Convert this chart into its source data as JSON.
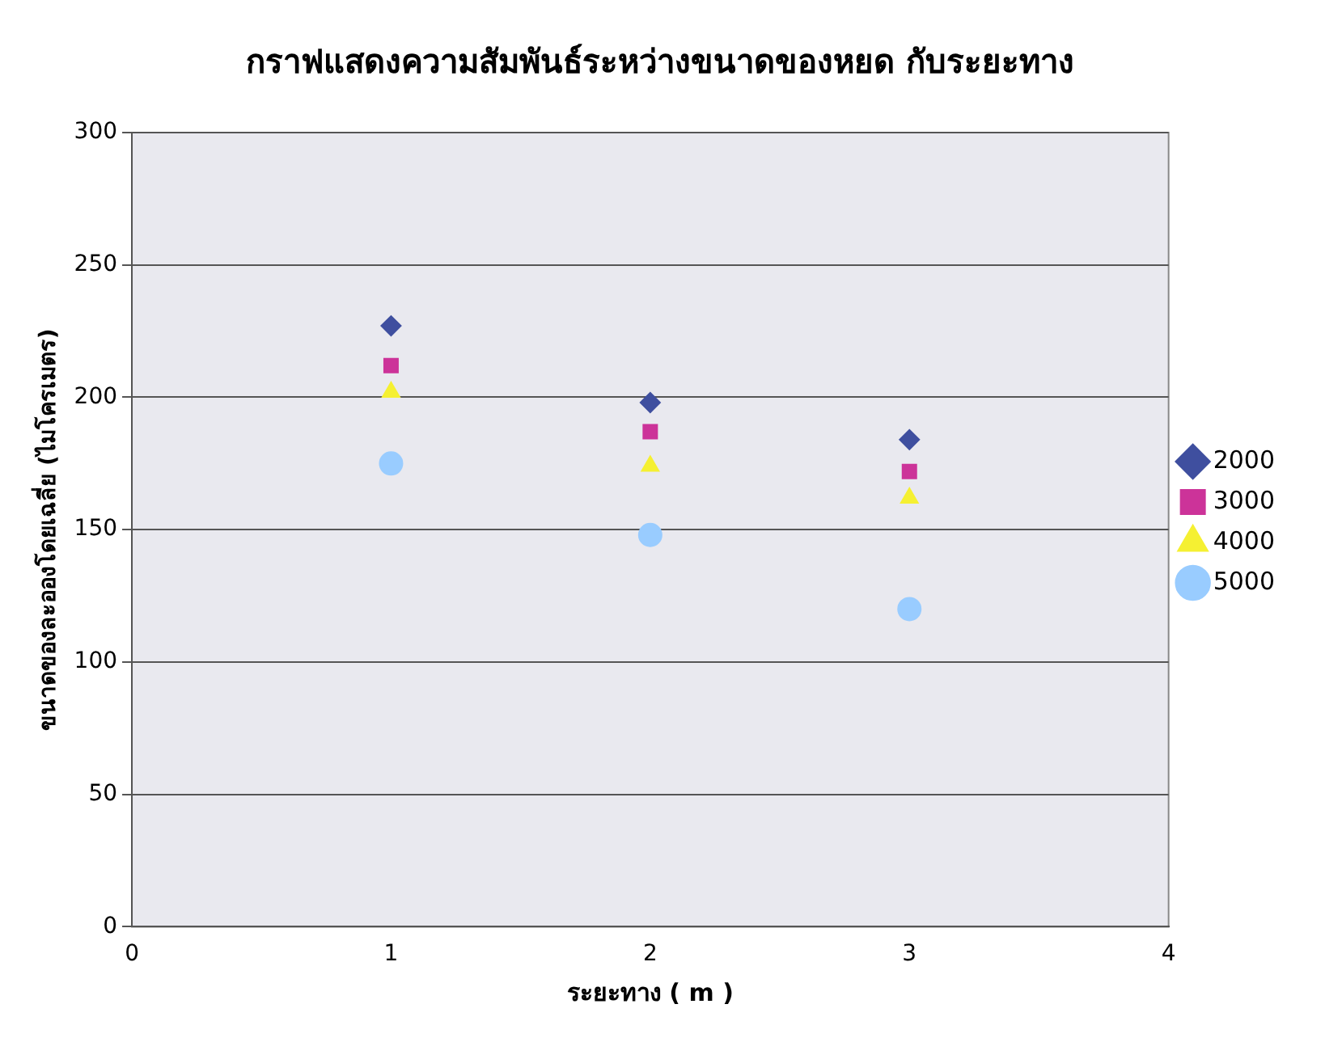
{
  "chart_data": {
    "type": "scatter",
    "title": "กราฟแสดงความสัมพันธ์ระหว่างขนาดของหยด กับระยะทาง",
    "xlabel": "ระยะทาง ( m )",
    "ylabel": "ขนาดของละอองโดยเฉลี่ย (ไมโครเมตร)",
    "x": [
      1,
      2,
      3
    ],
    "series": [
      {
        "name": "2000",
        "color": "#3f4f9f",
        "marker": "diamond",
        "values": [
          227,
          198,
          184
        ]
      },
      {
        "name": "3000",
        "color": "#cc3399",
        "marker": "square",
        "values": [
          212,
          187,
          172
        ]
      },
      {
        "name": "4000",
        "color": "#f5f032",
        "marker": "triangle",
        "values": [
          202,
          174,
          162
        ]
      },
      {
        "name": "5000",
        "color": "#99ccff",
        "marker": "circle",
        "values": [
          175,
          148,
          120
        ]
      }
    ],
    "xlim": [
      0,
      4
    ],
    "xticks": [
      0,
      1,
      2,
      3,
      4
    ],
    "ylim": [
      0,
      300
    ],
    "yticks": [
      0,
      50,
      100,
      150,
      200,
      250,
      300
    ],
    "grid": "y",
    "legend": "right"
  }
}
